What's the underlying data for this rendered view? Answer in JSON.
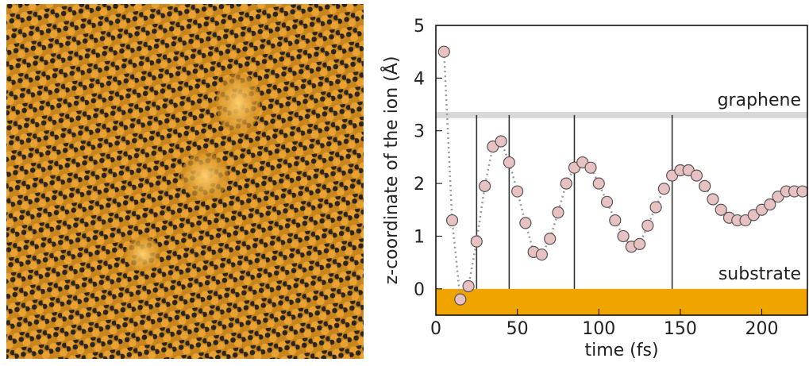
{
  "chart_data": {
    "type": "scatter",
    "xlabel": "time (fs)",
    "ylabel": "z-coordinate of the ion (Å)",
    "x": [
      5,
      10,
      15,
      20,
      25,
      30,
      35,
      40,
      45,
      50,
      55,
      60,
      65,
      70,
      75,
      80,
      85,
      90,
      95,
      100,
      105,
      110,
      115,
      120,
      125,
      130,
      135,
      140,
      145,
      150,
      155,
      160,
      165,
      170,
      175,
      180,
      185,
      190,
      195,
      200,
      205,
      210,
      215,
      220,
      225
    ],
    "values": [
      4.5,
      1.3,
      -0.2,
      0.05,
      0.9,
      1.95,
      2.7,
      2.8,
      2.4,
      1.85,
      1.25,
      0.7,
      0.65,
      0.95,
      1.45,
      2.0,
      2.3,
      2.4,
      2.3,
      2.0,
      1.65,
      1.3,
      1.0,
      0.8,
      0.85,
      1.2,
      1.55,
      1.9,
      2.15,
      2.25,
      2.25,
      2.15,
      1.95,
      1.7,
      1.5,
      1.35,
      1.3,
      1.3,
      1.4,
      1.5,
      1.6,
      1.75,
      1.85,
      1.85,
      1.85
    ],
    "color": "#e8c2c2",
    "xlim": [
      0,
      228
    ],
    "xticks": [
      0,
      50,
      100,
      150,
      200
    ],
    "ylim": [
      -0.5,
      5
    ],
    "yticks": [
      0,
      1,
      2,
      3,
      4,
      5
    ],
    "vlines": [
      25,
      45,
      85,
      145
    ],
    "annotations": [
      {
        "text": "graphene",
        "y": 3.3
      },
      {
        "text": "substrate",
        "y": 0
      }
    ]
  }
}
